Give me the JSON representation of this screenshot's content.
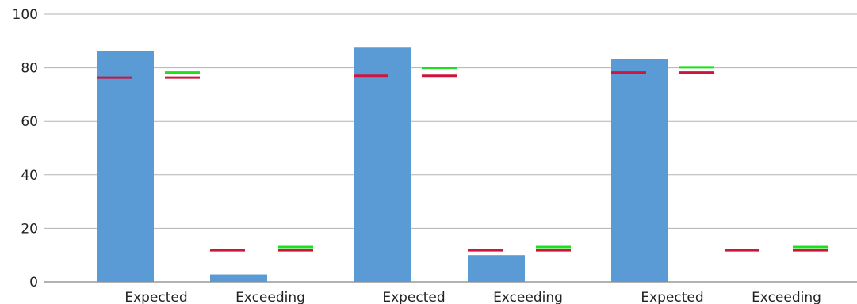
{
  "chart_data": {
    "type": "bar",
    "title": "",
    "xlabel": "",
    "ylabel": "",
    "ylim": [
      0,
      100
    ],
    "yticks": [
      "0",
      "20",
      "40",
      "60",
      "80",
      "100"
    ],
    "grid": true,
    "legend": "none",
    "categories": [
      "Expected",
      "Exceeding",
      "Expected",
      "Exceeding",
      "Expected",
      "Exceeding"
    ],
    "values": [
      86.3,
      2.8,
      87.5,
      10.0,
      83.3,
      0
    ],
    "markers_red": [
      76.3,
      11.8,
      77.0,
      11.8,
      78.2,
      11.8
    ],
    "markers_green": [
      78.2,
      13.0,
      80.0,
      13.0,
      80.2,
      13.0
    ],
    "markers_red_adjacent": [
      76.3,
      11.8,
      77.0,
      11.8,
      78.2,
      11.8
    ],
    "colors": {
      "bar": "#5b9bd5",
      "marker_red": "#d0143c",
      "marker_green": "#1ee01e",
      "grid": "#b3b3b3"
    }
  }
}
